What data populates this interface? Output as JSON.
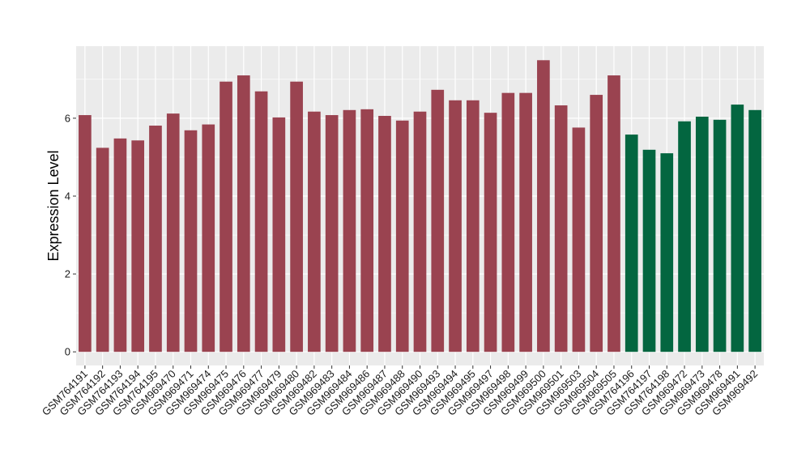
{
  "chart_data": {
    "type": "bar",
    "ylabel": "Expression Level",
    "xlabel": "",
    "ylim": [
      -0.35,
      7.85
    ],
    "yticks": [
      0,
      2,
      4,
      6
    ],
    "grid": true,
    "categories": [
      "GSM764191",
      "GSM764192",
      "GSM764193",
      "GSM764194",
      "GSM764195",
      "GSM969470",
      "GSM969471",
      "GSM969474",
      "GSM969475",
      "GSM969476",
      "GSM969477",
      "GSM969479",
      "GSM969480",
      "GSM969482",
      "GSM969483",
      "GSM969484",
      "GSM969486",
      "GSM969487",
      "GSM969488",
      "GSM969490",
      "GSM969493",
      "GSM969494",
      "GSM969495",
      "GSM969497",
      "GSM969498",
      "GSM969499",
      "GSM969500",
      "GSM969501",
      "GSM969503",
      "GSM969504",
      "GSM969505",
      "GSM764196",
      "GSM764197",
      "GSM764198",
      "GSM969472",
      "GSM969473",
      "GSM969478",
      "GSM969491",
      "GSM969492"
    ],
    "values": [
      6.08,
      5.24,
      5.48,
      5.43,
      5.81,
      6.12,
      5.69,
      5.84,
      6.94,
      7.1,
      6.69,
      6.02,
      6.94,
      6.17,
      6.08,
      6.21,
      6.23,
      6.06,
      5.94,
      6.17,
      6.73,
      6.46,
      6.46,
      6.14,
      6.65,
      6.65,
      7.49,
      6.33,
      5.76,
      6.6,
      7.1,
      5.58,
      5.19,
      5.1,
      5.92,
      6.04,
      5.96,
      6.35,
      6.21
    ],
    "group": [
      0,
      0,
      0,
      0,
      0,
      0,
      0,
      0,
      0,
      0,
      0,
      0,
      0,
      0,
      0,
      0,
      0,
      0,
      0,
      0,
      0,
      0,
      0,
      0,
      0,
      0,
      0,
      0,
      0,
      0,
      0,
      1,
      1,
      1,
      1,
      1,
      1,
      1,
      1
    ],
    "group_colors": [
      "#9a4350",
      "#036640"
    ],
    "panel_background": "#ebebeb",
    "grid_color": "#ffffff"
  }
}
